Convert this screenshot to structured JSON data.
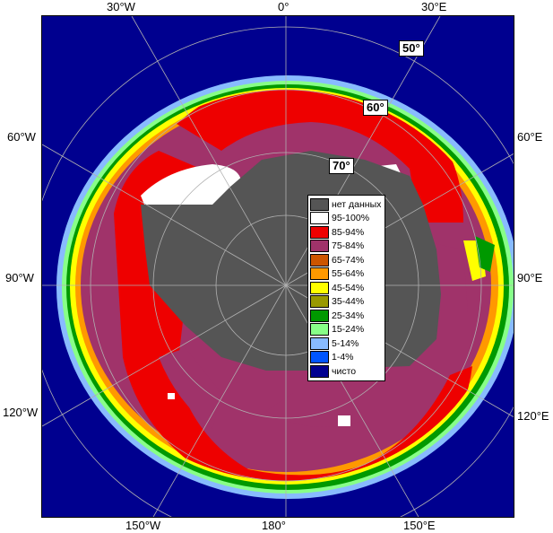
{
  "map": {
    "lon_labels": {
      "w30": "30°W",
      "zero": "0°",
      "e30": "30°E",
      "w60": "60°W",
      "e60": "60°E",
      "w90": "90°W",
      "e90": "90°E",
      "w120": "120°W",
      "e120": "120°E",
      "w150": "150°W",
      "deg180": "180°",
      "e150": "150°E"
    },
    "lat_labels": {
      "lat50": "50°",
      "lat60": "60°",
      "lat70": "70°"
    }
  },
  "legend": {
    "items": [
      {
        "label": "нет данных",
        "color": "#555555"
      },
      {
        "label": "95-100%",
        "color": "#ffffff"
      },
      {
        "label": "85-94%",
        "color": "#ee0000"
      },
      {
        "label": "75-84%",
        "color": "#a0336a"
      },
      {
        "label": "65-74%",
        "color": "#cc5500"
      },
      {
        "label": "55-64%",
        "color": "#ff9900"
      },
      {
        "label": "45-54%",
        "color": "#ffff00"
      },
      {
        "label": "35-44%",
        "color": "#999900"
      },
      {
        "label": "25-34%",
        "color": "#009900"
      },
      {
        "label": "15-24%",
        "color": "#88ff88"
      },
      {
        "label": "5-14%",
        "color": "#88bbff"
      },
      {
        "label": "1-4%",
        "color": "#0055ff"
      },
      {
        "label": "чисто",
        "color": "#000090"
      }
    ]
  }
}
